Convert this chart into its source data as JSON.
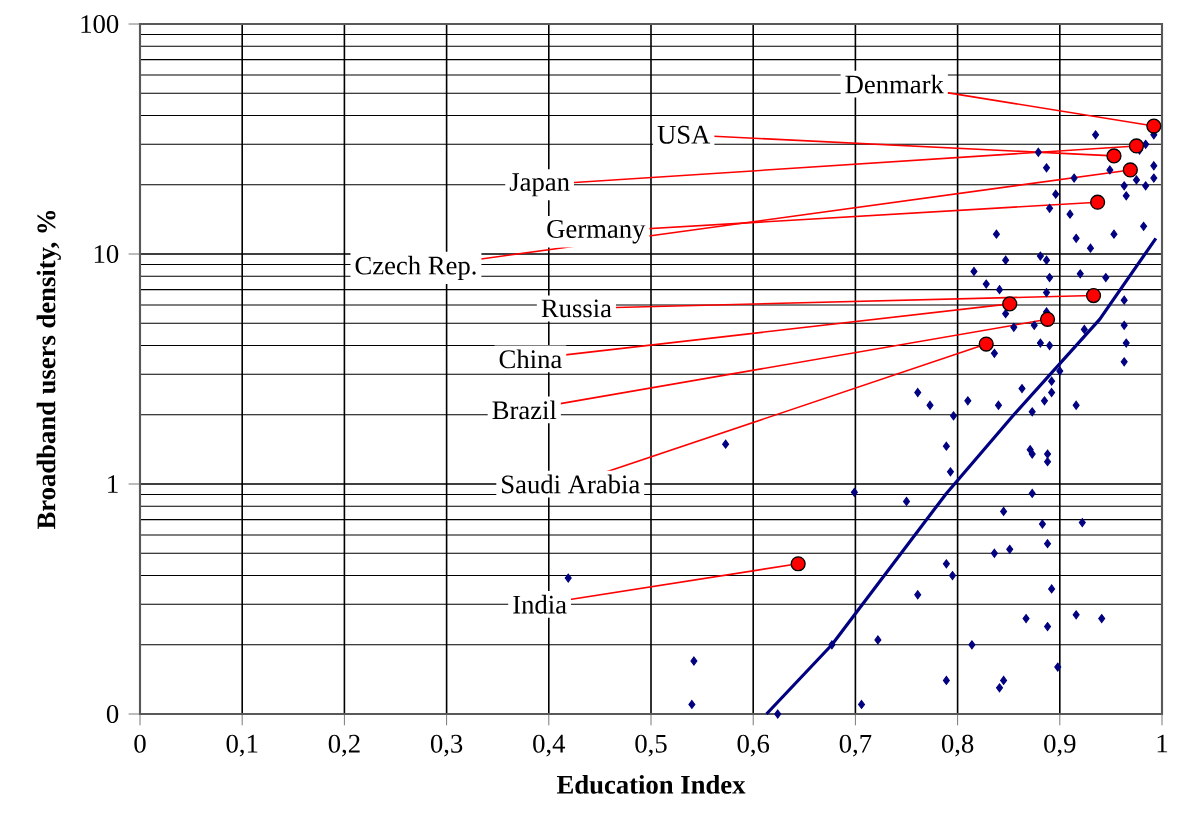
{
  "chart_data": {
    "type": "scatter",
    "xlabel": "Education Index",
    "ylabel": "Broadband users density, %",
    "log": "y",
    "grid": true,
    "xlim": [
      0,
      1
    ],
    "ylim": [
      0.1,
      100
    ],
    "xticks": [
      0,
      {
        "value": 0.1,
        "label": "0,1"
      },
      {
        "value": 0.2,
        "label": "0,2"
      },
      {
        "value": 0.3,
        "label": "0,3"
      },
      {
        "value": 0.4,
        "label": "0,4"
      },
      {
        "value": 0.5,
        "label": "0,5"
      },
      {
        "value": 0.6,
        "label": "0,6"
      },
      {
        "value": 0.7,
        "label": "0,7"
      },
      {
        "value": 0.8,
        "label": "0,8"
      },
      {
        "value": 0.9,
        "label": "0,9"
      },
      1
    ],
    "yticks": [
      {
        "value": 0.1,
        "label": "0"
      },
      1,
      10,
      100
    ],
    "series": [
      {
        "color": "#000080",
        "marker": "diamond",
        "x": [
          0.935,
          0.879,
          0.887,
          0.914,
          0.949,
          0.992,
          0.984,
          0.978,
          0.992,
          0.992,
          0.975,
          0.984,
          0.963,
          0.965,
          0.896,
          0.89,
          0.91,
          0.838,
          0.916,
          0.93,
          0.953,
          0.982,
          0.847,
          0.881,
          0.887,
          0.816,
          0.828,
          0.841,
          0.89,
          0.92,
          0.945,
          0.887,
          0.963,
          0.847,
          0.887,
          0.855,
          0.875,
          0.924,
          0.963,
          0.881,
          0.89,
          0.965,
          0.836,
          0.963,
          0.9,
          0.892,
          0.863,
          0.761,
          0.773,
          0.81,
          0.84,
          0.885,
          0.892,
          0.916,
          0.873,
          0.796,
          0.573,
          0.789,
          0.871,
          0.873,
          0.888,
          0.888,
          0.793,
          0.699,
          0.75,
          0.873,
          0.845,
          0.883,
          0.922,
          0.888,
          0.836,
          0.851,
          0.789,
          0.795,
          0.419,
          0.761,
          0.892,
          0.916,
          0.941,
          0.867,
          0.888,
          0.542,
          0.677,
          0.722,
          0.814,
          0.898,
          0.789,
          0.845,
          0.841,
          0.54,
          0.706,
          0.624
        ],
        "values": [
          33,
          27.7,
          23.7,
          21.4,
          23.2,
          33,
          30,
          28.3,
          24.2,
          21.4,
          21,
          19.8,
          19.8,
          17.9,
          18.2,
          15.8,
          14.9,
          12.2,
          11.7,
          10.6,
          12.2,
          13.2,
          9.4,
          9.8,
          9.4,
          8.4,
          7.4,
          7.0,
          7.9,
          8.2,
          7.9,
          6.8,
          6.3,
          5.5,
          5.6,
          4.8,
          4.9,
          4.7,
          4.9,
          4.1,
          4.0,
          4.1,
          3.7,
          3.4,
          3.1,
          2.8,
          2.6,
          2.5,
          2.2,
          2.3,
          2.2,
          2.3,
          2.5,
          2.2,
          2.06,
          1.98,
          1.49,
          1.46,
          1.41,
          1.35,
          1.35,
          1.25,
          1.13,
          0.92,
          0.84,
          0.91,
          0.76,
          0.67,
          0.68,
          0.55,
          0.5,
          0.52,
          0.45,
          0.4,
          0.39,
          0.33,
          0.35,
          0.27,
          0.26,
          0.26,
          0.24,
          0.17,
          0.2,
          0.21,
          0.2,
          0.16,
          0.14,
          0.14,
          0.13,
          0.11,
          0.11,
          0.1
        ]
      },
      {
        "type": "line",
        "color": "#000080",
        "marker": "none",
        "line_style": "solid",
        "x": [
          0.613,
          0.677,
          0.789,
          0.855,
          0.939,
          0.994
        ],
        "values": [
          0.1,
          0.2,
          0.91,
          2.0,
          5.2,
          11.7
        ]
      },
      {
        "type": "scatter",
        "color": "#ff0000",
        "marker": "circle",
        "x": [
          0.992,
          0.953,
          0.975,
          0.969,
          0.937,
          0.933,
          0.851,
          0.888,
          0.828,
          0.644
        ],
        "values": [
          36,
          26.7,
          29.5,
          23.2,
          16.8,
          6.6,
          6.07,
          5.2,
          4.06,
          0.45
        ]
      }
    ],
    "annotations": [
      {
        "text": "Denmark",
        "x": 0.992,
        "y": 36
      },
      {
        "text": "USA",
        "x": 0.953,
        "y": 26.7
      },
      {
        "text": "Japan",
        "x": 0.975,
        "y": 29.5
      },
      {
        "text": "Germany",
        "x": 0.937,
        "y": 16.8
      },
      {
        "text": "Czech Rep.",
        "x": 0.969,
        "y": 23.2
      },
      {
        "text": "Russia",
        "x": 0.933,
        "y": 6.6
      },
      {
        "text": "China",
        "x": 0.851,
        "y": 6.07
      },
      {
        "text": "Brazil",
        "x": 0.888,
        "y": 5.2
      },
      {
        "text": "Saudi Arabia",
        "x": 0.828,
        "y": 4.06
      },
      {
        "text": "India",
        "x": 0.644,
        "y": 0.45
      }
    ]
  }
}
